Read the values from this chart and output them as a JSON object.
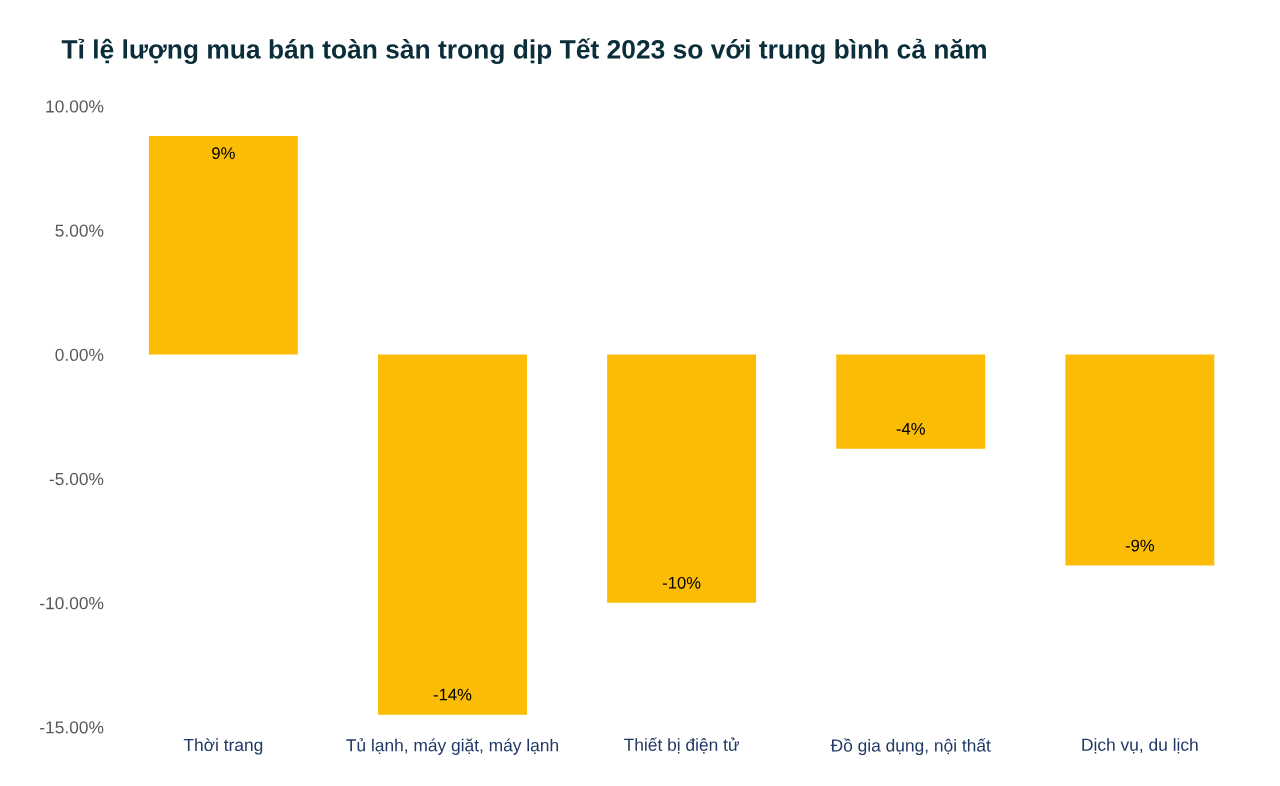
{
  "chart_data": {
    "type": "bar",
    "title": "Tỉ lệ lượng mua bán toàn sàn trong dịp Tết 2023 so với trung bình cả năm",
    "categories": [
      "Thời trang",
      "Tủ lạnh, máy giặt, máy lạnh",
      "Thiết bị điện tử",
      "Đồ gia dụng, nội thất",
      "Dịch vụ, du lịch"
    ],
    "values": [
      8.8,
      -14.5,
      -10.0,
      -3.8,
      -8.5
    ],
    "value_labels": [
      "9%",
      "-14%",
      "-10%",
      "-4%",
      "-9%"
    ],
    "color": "#fbbc05",
    "ylim": [
      -15,
      10
    ],
    "yticks": [
      {
        "value": -15,
        "label": "-15.00%"
      },
      {
        "value": -10,
        "label": "-10.00%"
      },
      {
        "value": -5,
        "label": "-5.00%"
      },
      {
        "value": 0,
        "label": "0.00%"
      },
      {
        "value": 5,
        "label": "5.00%"
      },
      {
        "value": 10,
        "label": "10.00%"
      }
    ],
    "grid": false
  }
}
